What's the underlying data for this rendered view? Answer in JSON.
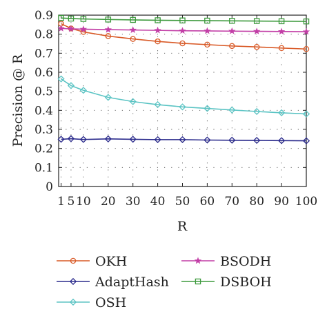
{
  "chart_data": {
    "type": "line",
    "xlabel": "R",
    "ylabel": "Precision @ R",
    "ylim": [
      0,
      0.9
    ],
    "xlim": [
      0,
      100
    ],
    "x": [
      1,
      5,
      10,
      20,
      30,
      40,
      50,
      60,
      70,
      80,
      90,
      100
    ],
    "xticks": [
      1,
      5,
      10,
      20,
      30,
      40,
      50,
      60,
      70,
      80,
      90,
      100
    ],
    "yticks": [
      0,
      0.1,
      0.2,
      0.3,
      0.4,
      0.5,
      0.6,
      0.7,
      0.8,
      0.9
    ],
    "grid": "dotted",
    "legend_position": "bottom",
    "series": [
      {
        "name": "OKH",
        "color": "#d95a27",
        "marker": "circle",
        "values": [
          0.855,
          0.83,
          0.812,
          0.79,
          0.775,
          0.762,
          0.752,
          0.745,
          0.738,
          0.733,
          0.727,
          0.722
        ]
      },
      {
        "name": "BSODH",
        "color": "#c23ea6",
        "marker": "star",
        "values": [
          0.83,
          0.828,
          0.826,
          0.824,
          0.822,
          0.82,
          0.818,
          0.817,
          0.816,
          0.815,
          0.814,
          0.813
        ]
      },
      {
        "name": "AdaptHash",
        "color": "#2a2a8c",
        "marker": "diamond",
        "values": [
          0.248,
          0.251,
          0.247,
          0.25,
          0.248,
          0.246,
          0.246,
          0.244,
          0.243,
          0.242,
          0.241,
          0.24
        ]
      },
      {
        "name": "DSBOH",
        "color": "#3d9a3d",
        "marker": "square",
        "values": [
          0.885,
          0.882,
          0.88,
          0.877,
          0.875,
          0.873,
          0.872,
          0.871,
          0.87,
          0.869,
          0.868,
          0.867
        ]
      },
      {
        "name": "OSH",
        "color": "#5bc4c4",
        "marker": "diamond",
        "values": [
          0.565,
          0.53,
          0.505,
          0.468,
          0.446,
          0.43,
          0.418,
          0.41,
          0.402,
          0.394,
          0.387,
          0.381
        ]
      }
    ]
  }
}
